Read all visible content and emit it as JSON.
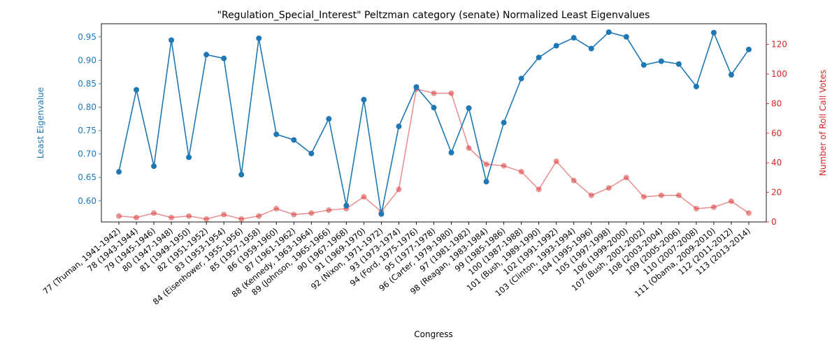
{
  "chart_data": {
    "type": "line",
    "title": "\"Regulation_Special_Interest\" Peltzman category (senate) Normalized Least Eigenvalues",
    "xlabel": "Congress",
    "ylabel_left": "Least Eigenvalue",
    "ylabel_right": "Number of Roll Call Votes",
    "categories": [
      "77 (Truman, 1941-1942)",
      "78 (1943-1944)",
      "79 (1945-1946)",
      "80 (1947-1948)",
      "81 (1949-1950)",
      "82 (1951-1952)",
      "83 (1953-1954)",
      "84 (Eisenhower, 1955-1956)",
      "85 (1957-1958)",
      "86 (1959-1960)",
      "87 (1961-1962)",
      "88 (Kennedy, 1963-1964)",
      "89 (Johnson, 1965-1966)",
      "90 (1967-1968)",
      "91 (1969-1970)",
      "92 (Nixon, 1971-1972)",
      "93 (1973-1974)",
      "94 (Ford, 1975-1976)",
      "95 (1977-1978)",
      "96 (Carter, 1979-1980)",
      "97 (1981-1982)",
      "98 (Reagan, 1983-1984)",
      "99 (1985-1986)",
      "100 (1987-1988)",
      "101 (Bush, 1989-1990)",
      "102 (1991-1992)",
      "103 (Clinton, 1993-1994)",
      "104 (1995-1996)",
      "105 (1997-1998)",
      "106 (1999-2000)",
      "107 (Bush, 2001-2002)",
      "108 (2003-2004)",
      "109 (2005-2006)",
      "110 (2007-2008)",
      "111 (Obama, 2009-2010)",
      "112 (2011-2012)",
      "113 (2013-2014)"
    ],
    "series": [
      {
        "axis": "left",
        "color": "#1f77b4",
        "values": [
          0.662,
          0.837,
          0.674,
          0.943,
          0.693,
          0.912,
          0.904,
          0.656,
          0.947,
          0.742,
          0.73,
          0.701,
          0.775,
          0.59,
          0.816,
          0.572,
          0.759,
          0.843,
          0.799,
          0.703,
          0.798,
          0.641,
          0.767,
          0.861,
          0.906,
          0.931,
          0.948,
          0.925,
          0.96,
          0.95,
          0.89,
          0.898,
          0.892,
          0.844,
          0.959,
          0.869,
          0.923
        ]
      },
      {
        "axis": "right",
        "color": "#d62728",
        "values": [
          4,
          3,
          6,
          3,
          4,
          2,
          5,
          2,
          4,
          9,
          5,
          6,
          8,
          9,
          17,
          7,
          22,
          90,
          87,
          87,
          50,
          39,
          38,
          34,
          22,
          41,
          28,
          18,
          23,
          30,
          17,
          18,
          18,
          9,
          10,
          14,
          6
        ]
      }
    ],
    "ylim_left": [
      0.555,
      0.978
    ],
    "ylim_right": [
      0,
      134
    ],
    "yticks_left": [
      0.6,
      0.65,
      0.7,
      0.75,
      0.8,
      0.85,
      0.9,
      0.95
    ],
    "yticks_right": [
      0,
      20,
      40,
      60,
      80,
      100,
      120
    ],
    "grid": false
  }
}
